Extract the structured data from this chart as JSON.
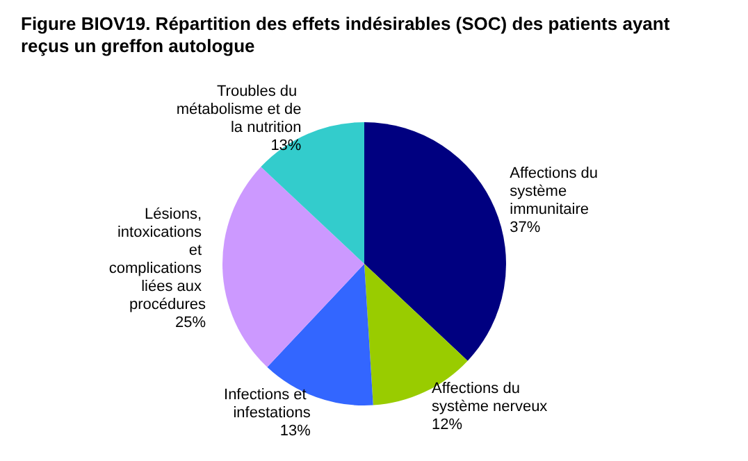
{
  "chart_data": {
    "type": "pie",
    "title": "Figure BIOV19. Répartition des effets indésirables (SOC) des patients ayant reçus un greffon autologue",
    "categories": [
      "Affections du système immunitaire",
      "Affections du système nerveux",
      "Infections et infestations",
      "Lésions, intoxications et complications liées aux procédures",
      "Troubles du métabolisme et de la nutrition"
    ],
    "values": [
      37,
      12,
      13,
      25,
      13
    ],
    "colors": [
      "#000080",
      "#99cc00",
      "#3366ff",
      "#cc99ff",
      "#33cccc"
    ],
    "value_labels": [
      "37%",
      "12%",
      "13%",
      "25%",
      "13%"
    ]
  }
}
